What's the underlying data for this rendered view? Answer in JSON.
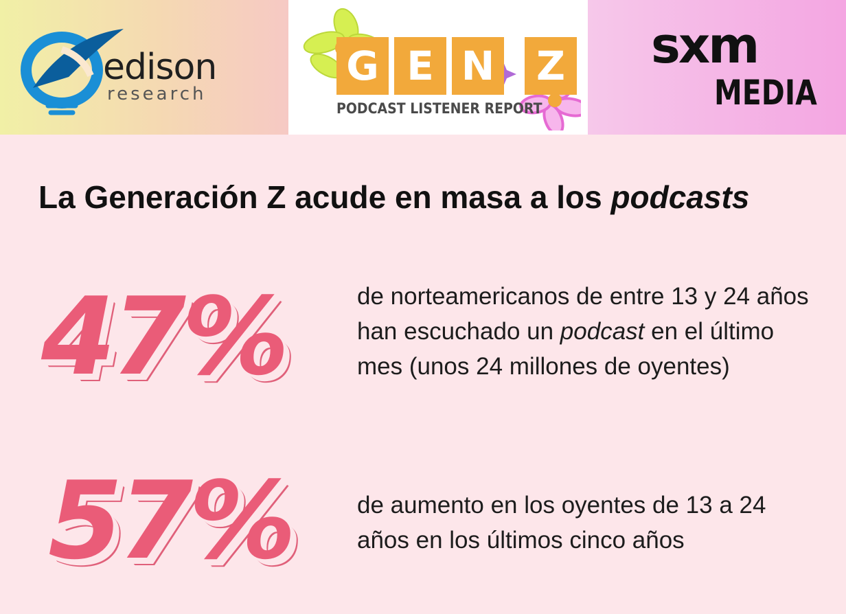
{
  "logos": {
    "edison": {
      "name": "edison",
      "sub": "research",
      "colors": {
        "blue": "#1a8fd6",
        "dark_blue": "#0b5e9c"
      }
    },
    "genz": {
      "letters": [
        "G",
        "E",
        "N",
        "Z"
      ],
      "sub": "PODCAST LISTENER REPORT",
      "colors": {
        "tile": "#f2a93b",
        "flower_yellow": "#d6ef52",
        "flower_pink": "#e66ad3"
      }
    },
    "sxm": {
      "name": "sxm",
      "sub": "MEDIA"
    }
  },
  "title": {
    "main": "La Generación Z acude en masa a los ",
    "italic": "podcasts"
  },
  "stats": [
    {
      "value": "47%",
      "text_before": "de norteamericanos de entre 13 y 24 años han escuchado un ",
      "text_italic": "podcast",
      "text_after": " en el último mes (unos 24 millones de oyentes)"
    },
    {
      "value": "57%",
      "text": "de aumento en los oyentes de 13 a 24 años en los últimos cinco años"
    }
  ],
  "colors": {
    "background": "#fde6ea",
    "accent": "#ea5c78"
  }
}
